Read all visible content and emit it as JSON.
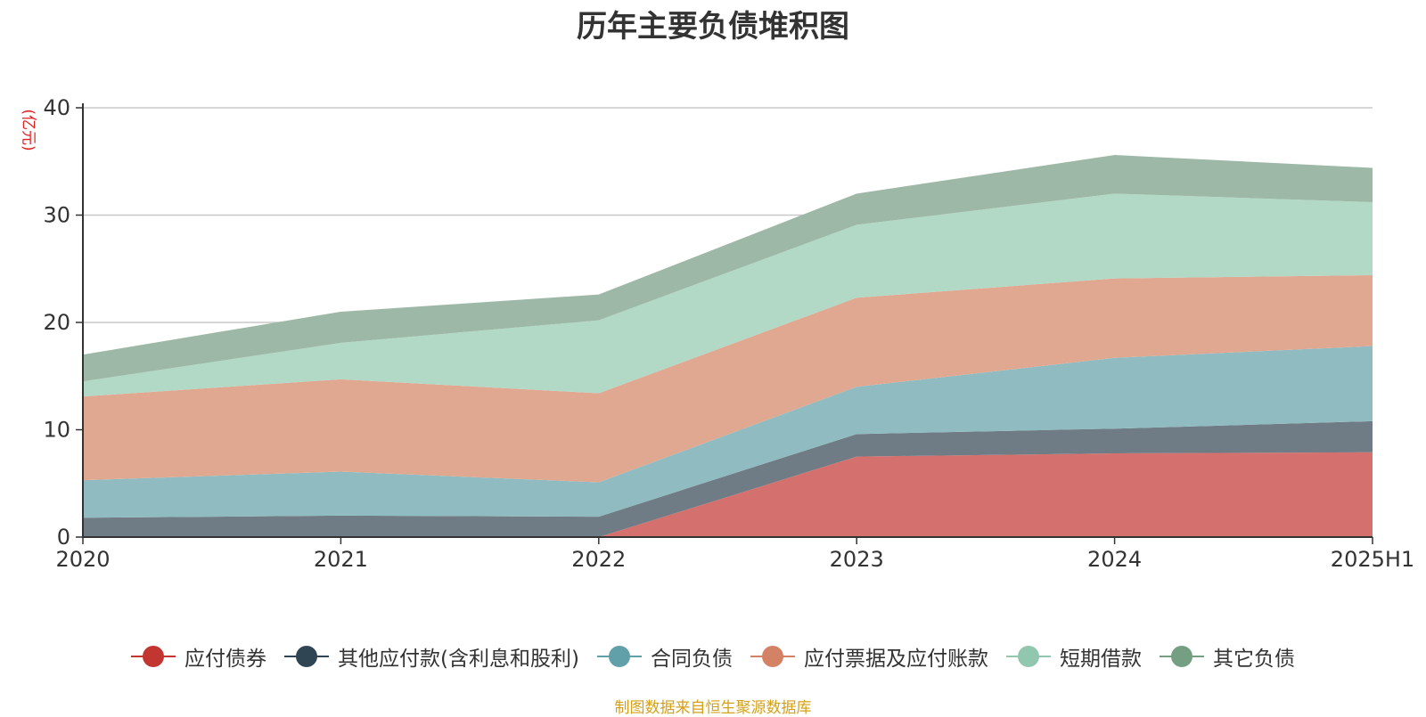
{
  "title": "历年主要负债堆积图",
  "unit_label": "(亿元)",
  "source": "制图数据来自恒生聚源数据库",
  "chart_data": {
    "type": "area",
    "stacked": true,
    "categories": [
      "2020",
      "2021",
      "2022",
      "2023",
      "2024",
      "2025H1"
    ],
    "ylim": [
      0,
      40
    ],
    "yticks": [
      0,
      10,
      20,
      30,
      40
    ],
    "grid": true,
    "legend_position": "bottom",
    "series": [
      {
        "name": "应付债券",
        "color": "#c23531",
        "fill": "#d4706d",
        "values": [
          0,
          0,
          0,
          7.5,
          7.8,
          7.9
        ]
      },
      {
        "name": "其他应付款(含利息和股利)",
        "color": "#2f4554",
        "fill": "#6f7c85",
        "values": [
          1.8,
          2.0,
          1.9,
          2.1,
          2.3,
          2.9
        ]
      },
      {
        "name": "合同负债",
        "color": "#61a0a8",
        "fill": "#90bcc1",
        "values": [
          3.5,
          4.1,
          3.2,
          4.4,
          6.6,
          7.0
        ]
      },
      {
        "name": "应付票据及应付账款",
        "color": "#d48265",
        "fill": "#e0a891",
        "values": [
          7.8,
          8.6,
          8.3,
          8.3,
          7.4,
          6.6
        ]
      },
      {
        "name": "短期借款",
        "color": "#91c7ae",
        "fill": "#b2d8c6",
        "values": [
          1.4,
          3.4,
          6.8,
          6.8,
          7.9,
          6.8
        ]
      },
      {
        "name": "其它负债",
        "color": "#749f83",
        "fill": "#9db8a6",
        "values": [
          2.5,
          2.9,
          2.4,
          2.9,
          3.6,
          3.2
        ]
      }
    ]
  }
}
